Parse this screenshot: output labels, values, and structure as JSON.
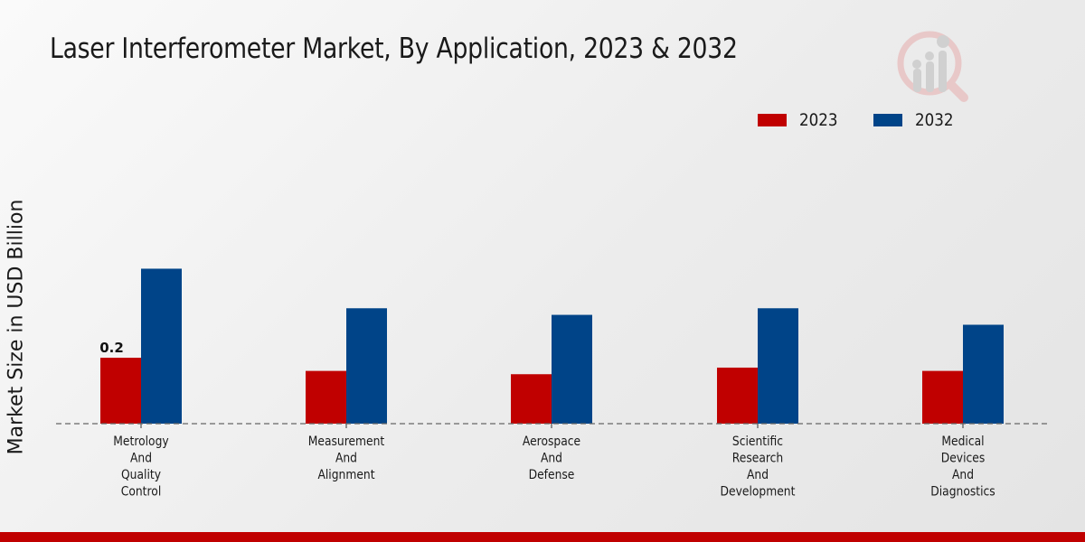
{
  "colors": {
    "series_2023": "#c00000",
    "series_2032": "#004488",
    "footer": "#c00000"
  },
  "logo": {
    "icon": "market-research-logo-icon"
  },
  "chart_data": {
    "type": "bar",
    "title": "Laser Interferometer Market, By Application, 2023 & 2032",
    "xlabel": "",
    "ylabel": "Market Size in USD Billion",
    "categories": [
      "Metrology And Quality Control",
      "Measurement And Alignment",
      "Aerospace And Defense",
      "Scientific Research And Development",
      "Medical Devices And Diagnostics"
    ],
    "category_lines": [
      [
        "Metrology",
        "And",
        "Quality",
        "Control"
      ],
      [
        "Measurement",
        "And",
        "Alignment"
      ],
      [
        "Aerospace",
        "And",
        "Defense"
      ],
      [
        "Scientific",
        "Research",
        "And",
        "Development"
      ],
      [
        "Medical",
        "Devices",
        "And",
        "Diagnostics"
      ]
    ],
    "series": [
      {
        "name": "2023",
        "values": [
          0.2,
          0.16,
          0.15,
          0.17,
          0.16
        ]
      },
      {
        "name": "2032",
        "values": [
          0.47,
          0.35,
          0.33,
          0.35,
          0.3
        ]
      }
    ],
    "data_labels": [
      {
        "series": "2023",
        "category_index": 0,
        "text": "0.2"
      }
    ],
    "ylim": [
      0,
      0.55
    ],
    "grid": false,
    "legend": {
      "placement": "top-right",
      "entries": [
        "2023",
        "2032"
      ]
    }
  }
}
